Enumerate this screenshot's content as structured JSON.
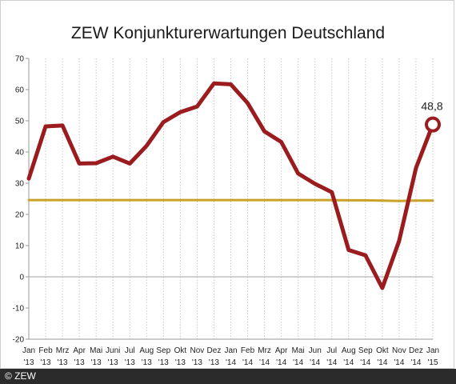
{
  "chart_data": {
    "type": "line",
    "title": "ZEW Konjunkturerwartungen Deutschland",
    "xlabel": "",
    "ylabel": "",
    "ylim": [
      -20,
      70
    ],
    "yticks": [
      -20,
      -10,
      0,
      10,
      20,
      30,
      40,
      50,
      60,
      70
    ],
    "categories": [
      {
        "month": "Jan",
        "year": "'13"
      },
      {
        "month": "Feb",
        "year": "'13"
      },
      {
        "month": "Mrz",
        "year": "'13"
      },
      {
        "month": "Apr",
        "year": "'13"
      },
      {
        "month": "Mai",
        "year": "'13"
      },
      {
        "month": "Juni",
        "year": "'13"
      },
      {
        "month": "Jul",
        "year": "'13"
      },
      {
        "month": "Aug",
        "year": "'13"
      },
      {
        "month": "Sep",
        "year": "'13"
      },
      {
        "month": "Okt",
        "year": "'13"
      },
      {
        "month": "Nov",
        "year": "'13"
      },
      {
        "month": "Dez",
        "year": "'13"
      },
      {
        "month": "Jan",
        "year": "'14"
      },
      {
        "month": "Feb",
        "year": "'14"
      },
      {
        "month": "Mrz",
        "year": "'14"
      },
      {
        "month": "Apr",
        "year": "'14"
      },
      {
        "month": "Mai",
        "year": "'14"
      },
      {
        "month": "Jun",
        "year": "'14"
      },
      {
        "month": "Jul",
        "year": "'14"
      },
      {
        "month": "Aug",
        "year": "'14"
      },
      {
        "month": "Sep",
        "year": "'14"
      },
      {
        "month": "Okt",
        "year": "'14"
      },
      {
        "month": "Nov",
        "year": "'14"
      },
      {
        "month": "Dez",
        "year": "'14"
      },
      {
        "month": "Jan",
        "year": "'15"
      }
    ],
    "series": [
      {
        "color": "#9b1c1f",
        "values": [
          31.5,
          48.2,
          48.5,
          36.3,
          36.4,
          38.5,
          36.3,
          42.0,
          49.6,
          52.8,
          54.6,
          62.0,
          61.7,
          55.7,
          46.6,
          43.2,
          33.1,
          29.8,
          27.1,
          8.6,
          6.9,
          -3.6,
          11.5,
          34.9,
          48.8
        ]
      },
      {
        "color": "#c9a227",
        "values": [
          24.6,
          24.6,
          24.6,
          24.6,
          24.6,
          24.6,
          24.6,
          24.6,
          24.6,
          24.6,
          24.6,
          24.6,
          24.6,
          24.6,
          24.6,
          24.6,
          24.6,
          24.6,
          24.6,
          24.5,
          24.5,
          24.4,
          24.3,
          24.4,
          24.4
        ]
      }
    ],
    "annotation": {
      "text": "48,8",
      "index": 24
    },
    "grid": true
  },
  "footer": {
    "copyright": "© ZEW"
  }
}
